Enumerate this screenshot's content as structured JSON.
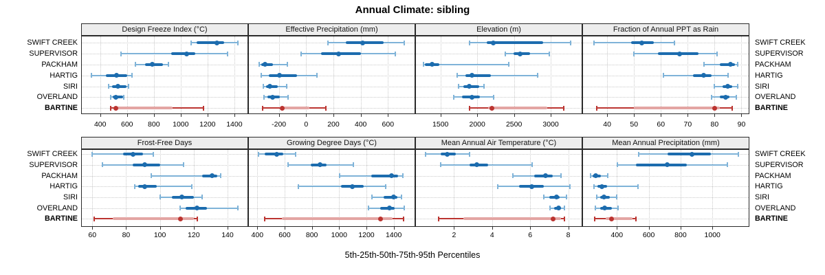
{
  "title": "Annual Climate: sibling",
  "xlabel": "5th-25th-50th-75th-95th Percentiles",
  "colors": {
    "blue_dark": "#1c6cae",
    "blue_light": "#7fb3d8",
    "red_dark": "#bb3430",
    "red_light": "#e3a5a3",
    "grid": "#c9c9c9",
    "strip_bg": "#ededed",
    "panel_border": "#2a2a2a"
  },
  "chart_data": {
    "type": "percentile-dotplot",
    "percentiles": [
      5,
      25,
      50,
      75,
      95
    ],
    "legend_note": "thin line = 5th-95th, thick band = 25th-75th, dot = 50th percentile",
    "layout": {
      "rows": 2,
      "cols": 4,
      "grid": "dotted",
      "y_labels": "both-sides"
    },
    "categories": [
      "SWIFT CREEK",
      "SUPERVISOR",
      "PACKHAM",
      "HARTIG",
      "SIRI",
      "OVERLAND",
      "BARTINE"
    ],
    "highlight_category": "BARTINE",
    "panels": [
      {
        "title": "Design Freeze Index (°C)",
        "ticks": [
          400,
          600,
          800,
          1000,
          1200,
          1400
        ],
        "xlim": [
          263,
          1498
        ],
        "rows": [
          [
            1080,
            1120,
            1270,
            1325,
            1425
          ],
          [
            555,
            930,
            1045,
            1110,
            1350
          ],
          [
            665,
            735,
            790,
            870,
            910
          ],
          [
            337,
            440,
            520,
            600,
            638
          ],
          [
            465,
            490,
            530,
            595,
            610
          ],
          [
            479,
            492,
            516,
            568,
            575
          ],
          [
            479,
            500,
            516,
            940,
            1170
          ]
        ]
      },
      {
        "title": "Effective Precipitation (mm)",
        "ticks": [
          -200,
          0,
          200,
          400,
          600
        ],
        "xlim": [
          -420,
          795
        ],
        "rows": [
          [
            158,
            292,
            412,
            567,
            717
          ],
          [
            -38,
            110,
            237,
            400,
            655
          ],
          [
            -345,
            -328,
            -303,
            -242,
            -136
          ],
          [
            -330,
            -275,
            -195,
            -67,
            80
          ],
          [
            -312,
            -292,
            -267,
            -208,
            -145
          ],
          [
            -310,
            -283,
            -247,
            -192,
            -133
          ],
          [
            -320,
            -195,
            -178,
            22,
            145
          ]
        ]
      },
      {
        "title": "Elevation (m)",
        "ticks": [
          1500,
          2000,
          2500,
          3000
        ],
        "xlim": [
          1166,
          3420
        ],
        "rows": [
          [
            1900,
            2130,
            2215,
            2900,
            3270
          ],
          [
            2380,
            2490,
            2580,
            2715,
            2980
          ],
          [
            1265,
            1285,
            1385,
            1485,
            2425
          ],
          [
            1730,
            1840,
            1930,
            2190,
            2825
          ],
          [
            1745,
            1810,
            1895,
            2025,
            2095
          ],
          [
            1685,
            1795,
            1930,
            2040,
            2225
          ],
          [
            1895,
            2150,
            2200,
            2950,
            3180
          ]
        ]
      },
      {
        "title": "Fraction of Annual PPT as Rain",
        "ticks": [
          40,
          50,
          60,
          70,
          80,
          90
        ],
        "xlim": [
          31,
          92.7
        ],
        "rows": [
          [
            35,
            49,
            53,
            57.5,
            65
          ],
          [
            50,
            59,
            67,
            74,
            81
          ],
          [
            76,
            82,
            86,
            87.5,
            88.5
          ],
          [
            61,
            72,
            76,
            79,
            85
          ],
          [
            80,
            83,
            85,
            86.5,
            88.5
          ],
          [
            79,
            82,
            84,
            85.5,
            88
          ],
          [
            36,
            50,
            80,
            82,
            86.5
          ]
        ]
      },
      {
        "title": "Frost-Free Days",
        "ticks": [
          60,
          80,
          100,
          120,
          140
        ],
        "xlim": [
          53.8,
          151.8
        ],
        "rows": [
          [
            60,
            78,
            84,
            90,
            96
          ],
          [
            66,
            84,
            91,
            100,
            114
          ],
          [
            95,
            125,
            131,
            134,
            136
          ],
          [
            85,
            87,
            91,
            98,
            119
          ],
          [
            100,
            107,
            113,
            120,
            125
          ],
          [
            112,
            115,
            122,
            128,
            146
          ],
          [
            61,
            72,
            112,
            120,
            122
          ]
        ]
      },
      {
        "title": "Growing Degree Days (°C)",
        "ticks": [
          400,
          600,
          800,
          1000,
          1200,
          1400
        ],
        "xlim": [
          338,
          1553
        ],
        "rows": [
          [
            410,
            455,
            542,
            588,
            680
          ],
          [
            625,
            790,
            858,
            908,
            1105
          ],
          [
            1005,
            1233,
            1383,
            1433,
            1465
          ],
          [
            700,
            1015,
            1095,
            1180,
            1340
          ],
          [
            1242,
            1325,
            1400,
            1425,
            1457
          ],
          [
            1217,
            1300,
            1367,
            1405,
            1475
          ],
          [
            455,
            580,
            1305,
            1390,
            1470
          ]
        ]
      },
      {
        "title": "Mean Annual Air Temperature (°C)",
        "ticks": [
          2,
          4,
          6,
          8
        ],
        "xlim": [
          0,
          8.7
        ],
        "rows": [
          [
            0.5,
            1.3,
            1.65,
            2.1,
            2.8
          ],
          [
            1.3,
            2.8,
            3.2,
            3.8,
            6.1
          ],
          [
            5.1,
            6.2,
            6.8,
            7.2,
            7.6
          ],
          [
            4.3,
            5.4,
            6.1,
            6.7,
            8.1
          ],
          [
            6.7,
            7.0,
            7.4,
            7.55,
            7.9
          ],
          [
            7.05,
            7.25,
            7.5,
            7.6,
            7.8
          ],
          [
            1.2,
            2.5,
            7.2,
            7.6,
            7.8
          ]
        ]
      },
      {
        "title": "Mean Annual Precipitation (mm)",
        "ticks": [
          400,
          600,
          800,
          1000
        ],
        "xlim": [
          187,
          1228
        ],
        "rows": [
          [
            535,
            720,
            870,
            990,
            1165
          ],
          [
            405,
            520,
            715,
            840,
            1095
          ],
          [
            235,
            246,
            268,
            300,
            343
          ],
          [
            257,
            278,
            307,
            340,
            534
          ],
          [
            274,
            293,
            317,
            357,
            397
          ],
          [
            264,
            293,
            325,
            368,
            406
          ],
          [
            260,
            329,
            368,
            500,
            520
          ]
        ]
      }
    ]
  }
}
